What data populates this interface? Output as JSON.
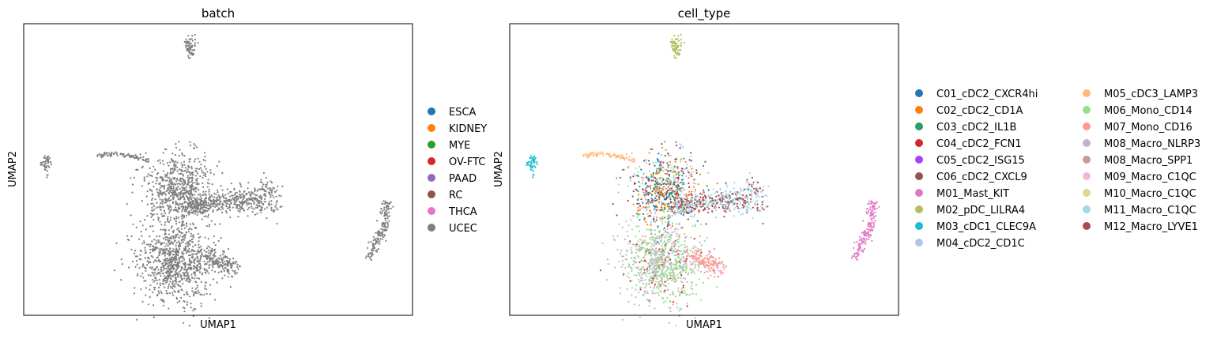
{
  "chart_data": [
    {
      "type": "scatter",
      "title": "batch",
      "xlabel": "UMAP1",
      "ylabel": "UMAP2",
      "grid": false,
      "legend_position": "right",
      "legend": [
        {
          "name": "ESCA",
          "color": "#1f77b4"
        },
        {
          "name": "KIDNEY",
          "color": "#ff7f0e"
        },
        {
          "name": "MYE",
          "color": "#2ca02c"
        },
        {
          "name": "OV-FTC",
          "color": "#d62728"
        },
        {
          "name": "PAAD",
          "color": "#9467bd"
        },
        {
          "name": "RC",
          "color": "#8c564b"
        },
        {
          "name": "THCA",
          "color": "#e377c2"
        },
        {
          "name": "UCEC",
          "color": "#7f7f7f"
        }
      ],
      "points_color": "#7f7f7f",
      "clusters": [
        {
          "id": "top",
          "label": "UCEC"
        },
        {
          "id": "leftsmall",
          "label": "UCEC"
        },
        {
          "id": "streak",
          "label": "UCEC"
        },
        {
          "id": "upperbody",
          "label": "UCEC"
        },
        {
          "id": "rightarm",
          "label": "UCEC"
        },
        {
          "id": "lowerbody",
          "label": "UCEC"
        },
        {
          "id": "lowerright",
          "label": "UCEC"
        },
        {
          "id": "rightcrescent",
          "label": "UCEC"
        }
      ]
    },
    {
      "type": "scatter",
      "title": "cell_type",
      "xlabel": "UMAP1",
      "ylabel": "UMAP2",
      "grid": false,
      "legend_position": "right",
      "legend_columns": 2,
      "legend": [
        {
          "name": "C01_cDC2_CXCR4hi",
          "color": "#1f77b4"
        },
        {
          "name": "C02_cDC2_CD1A",
          "color": "#ff7f0e"
        },
        {
          "name": "C03_cDC2_IL1B",
          "color": "#279e68"
        },
        {
          "name": "C04_cDC2_FCN1",
          "color": "#d62728"
        },
        {
          "name": "C05_cDC2_ISG15",
          "color": "#aa40fc"
        },
        {
          "name": "C06_cDC2_CXCL9",
          "color": "#8c564b"
        },
        {
          "name": "M01_Mast_KIT",
          "color": "#e377c2"
        },
        {
          "name": "M02_pDC_LILRA4",
          "color": "#b5bd61"
        },
        {
          "name": "M03_cDC1_CLEC9A",
          "color": "#17becf"
        },
        {
          "name": "M04_cDC2_CD1C",
          "color": "#aec7e8"
        },
        {
          "name": "M05_cDC3_LAMP3",
          "color": "#ffbb78"
        },
        {
          "name": "M06_Mono_CD14",
          "color": "#98df8a"
        },
        {
          "name": "M07_Mono_CD16",
          "color": "#ff9896"
        },
        {
          "name": "M08_Macro_NLRP3",
          "color": "#c5b0d5"
        },
        {
          "name": "M08_Macro_SPP1",
          "color": "#c49c94"
        },
        {
          "name": "M09_Macro_C1QC",
          "color": "#f7b6d2"
        },
        {
          "name": "M10_Macro_C1QC",
          "color": "#dbdb8d"
        },
        {
          "name": "M11_Macro_C1QC",
          "color": "#9edae5"
        },
        {
          "name": "M12_Macro_LYVE1",
          "color": "#ad494a"
        }
      ],
      "clusters": [
        {
          "id": "top",
          "label": "M02_pDC_LILRA4"
        },
        {
          "id": "leftsmall",
          "label": "M03_cDC1_CLEC9A"
        },
        {
          "id": "streak",
          "label": "M05_cDC3_LAMP3"
        },
        {
          "id": "upperbody",
          "label": "C01_cDC2_CXCR4hi / C02_cDC2_CD1A / C04_cDC2_FCN1 / M04_cDC2_CD1C"
        },
        {
          "id": "rightarm",
          "label": "M11_Macro_C1QC / M12_Macro_LYVE1"
        },
        {
          "id": "lowerbody",
          "label": "M06_Mono_CD14 / M08_Macro_NLRP3"
        },
        {
          "id": "lowerright",
          "label": "M07_Mono_CD16"
        },
        {
          "id": "rightcrescent",
          "label": "M01_Mast_KIT"
        }
      ]
    }
  ]
}
